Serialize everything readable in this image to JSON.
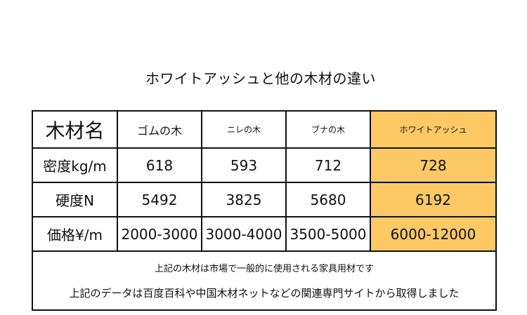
{
  "title": "ホワイトアッシュと他の木材の違い",
  "table": {
    "header": {
      "label": "木材名",
      "columns": [
        "ゴムの木",
        "ニレの木",
        "ブナの木",
        "ホワイトアッシュ"
      ]
    },
    "rows": [
      {
        "label": "密度kg/m",
        "values": [
          "618",
          "593",
          "712",
          "728"
        ]
      },
      {
        "label": "硬度N",
        "values": [
          "5492",
          "3825",
          "5680",
          "6192"
        ]
      },
      {
        "label": "価格¥/m",
        "values": [
          "2000-3000",
          "3000-4000",
          "3500-5000",
          "6000-12000"
        ]
      }
    ],
    "highlight_color": "#fcc964"
  },
  "notes": [
    "上記の木材は市場で一般的に使用される家具用材です",
    "上記のデータは百度百科や中国木材ネットなどの関連専門サイトから取得しました"
  ]
}
